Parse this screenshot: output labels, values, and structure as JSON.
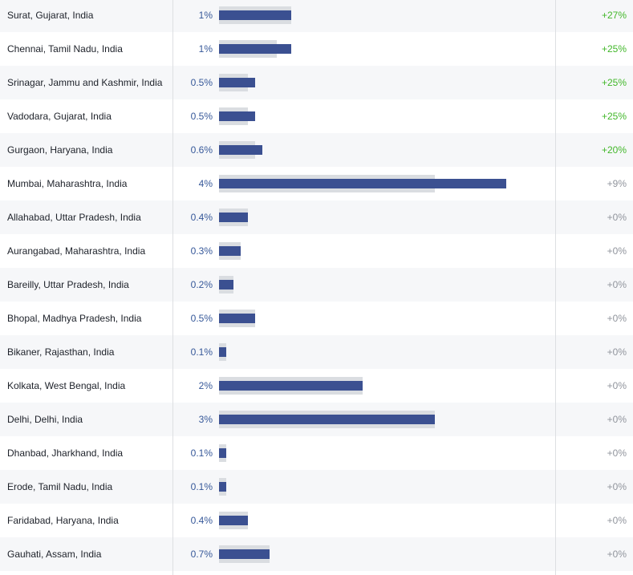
{
  "rows": [
    {
      "city": "Surat, Gujarat, India",
      "percent": "1%",
      "change": "+27%",
      "positive": true,
      "share": 1.0,
      "prior_share": 1.0
    },
    {
      "city": "Chennai, Tamil Nadu, India",
      "percent": "1%",
      "change": "+25%",
      "positive": true,
      "share": 1.0,
      "prior_share": 0.8
    },
    {
      "city": "Srinagar, Jammu and Kashmir, India",
      "percent": "0.5%",
      "change": "+25%",
      "positive": true,
      "share": 0.5,
      "prior_share": 0.4
    },
    {
      "city": "Vadodara, Gujarat, India",
      "percent": "0.5%",
      "change": "+25%",
      "positive": true,
      "share": 0.5,
      "prior_share": 0.4
    },
    {
      "city": "Gurgaon, Haryana, India",
      "percent": "0.6%",
      "change": "+20%",
      "positive": true,
      "share": 0.6,
      "prior_share": 0.5
    },
    {
      "city": "Mumbai, Maharashtra, India",
      "percent": "4%",
      "change": "+9%",
      "positive": false,
      "share": 4.0,
      "prior_share": 3.0
    },
    {
      "city": "Allahabad, Uttar Pradesh, India",
      "percent": "0.4%",
      "change": "+0%",
      "positive": false,
      "share": 0.4,
      "prior_share": 0.4
    },
    {
      "city": "Aurangabad, Maharashtra, India",
      "percent": "0.3%",
      "change": "+0%",
      "positive": false,
      "share": 0.3,
      "prior_share": 0.3
    },
    {
      "city": "Bareilly, Uttar Pradesh, India",
      "percent": "0.2%",
      "change": "+0%",
      "positive": false,
      "share": 0.2,
      "prior_share": 0.2
    },
    {
      "city": "Bhopal, Madhya Pradesh, India",
      "percent": "0.5%",
      "change": "+0%",
      "positive": false,
      "share": 0.5,
      "prior_share": 0.5
    },
    {
      "city": "Bikaner, Rajasthan, India",
      "percent": "0.1%",
      "change": "+0%",
      "positive": false,
      "share": 0.1,
      "prior_share": 0.1
    },
    {
      "city": "Kolkata, West Bengal, India",
      "percent": "2%",
      "change": "+0%",
      "positive": false,
      "share": 2.0,
      "prior_share": 2.0
    },
    {
      "city": "Delhi, Delhi, India",
      "percent": "3%",
      "change": "+0%",
      "positive": false,
      "share": 3.0,
      "prior_share": 3.0
    },
    {
      "city": "Dhanbad, Jharkhand, India",
      "percent": "0.1%",
      "change": "+0%",
      "positive": false,
      "share": 0.1,
      "prior_share": 0.1
    },
    {
      "city": "Erode, Tamil Nadu, India",
      "percent": "0.1%",
      "change": "+0%",
      "positive": false,
      "share": 0.1,
      "prior_share": 0.1
    },
    {
      "city": "Faridabad, Haryana, India",
      "percent": "0.4%",
      "change": "+0%",
      "positive": false,
      "share": 0.4,
      "prior_share": 0.4
    },
    {
      "city": "Gauhati, Assam, India",
      "percent": "0.7%",
      "change": "+0%",
      "positive": false,
      "share": 0.7,
      "prior_share": 0.7
    }
  ],
  "colors": {
    "bar": "#3b5091",
    "prior_bar": "#dadde1",
    "percent_text": "#365899",
    "positive_change": "#42b72a",
    "neutral_change": "#90949c"
  }
}
